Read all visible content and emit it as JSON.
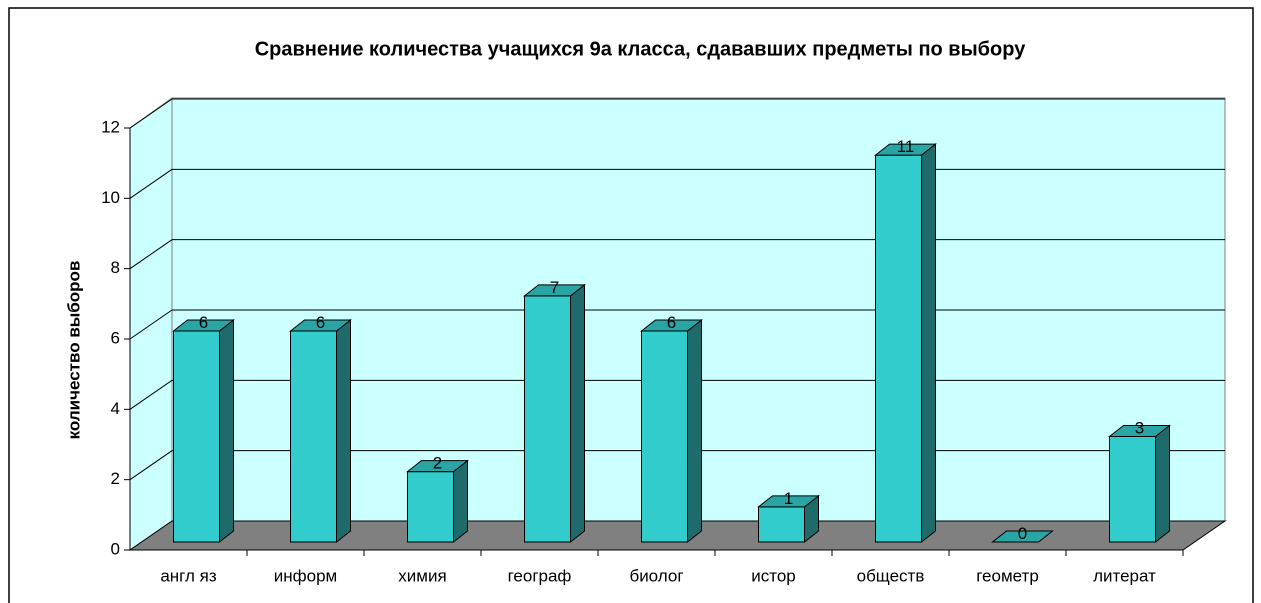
{
  "chart_data": {
    "type": "bar",
    "title": "Сравнение количества учащихся 9а класса, сдававших предметы по выбору",
    "y_label": "количество выборов",
    "categories": [
      "англ яз",
      "информ",
      "химия",
      "географ",
      "биолог",
      "истор",
      "обществ",
      "геометр",
      "литерат"
    ],
    "values": [
      6,
      6,
      2,
      7,
      6,
      1,
      11,
      0,
      3
    ],
    "color": "#33cccc",
    "ylim": [
      0,
      12
    ],
    "yticks": [
      0,
      2,
      4,
      6,
      8,
      10,
      12
    ],
    "grid": true
  }
}
